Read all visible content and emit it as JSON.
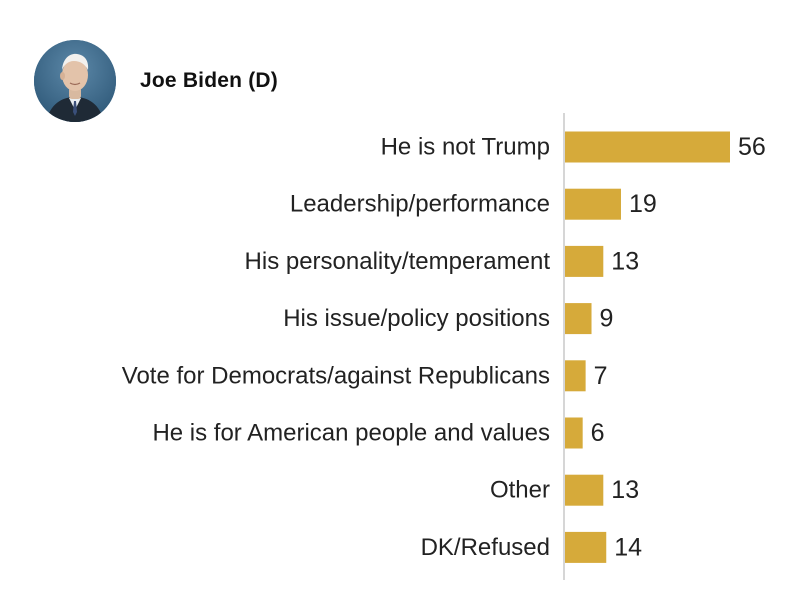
{
  "header": {
    "candidate_name": "Joe Biden (D)",
    "photo_icon": "person-portrait-icon"
  },
  "chart_data": {
    "type": "bar",
    "orientation": "horizontal",
    "categories": [
      "He is not Trump",
      "Leadership/performance",
      "His personality/temperament",
      "His issue/policy positions",
      "Vote for Democrats/against Republicans",
      "He is for American people and values",
      "Other",
      "DK/Refused"
    ],
    "values": [
      56,
      19,
      13,
      9,
      7,
      6,
      13,
      14
    ],
    "title": "",
    "xlabel": "",
    "ylabel": "",
    "xlim": [
      0,
      56
    ],
    "grid": false,
    "bar_color": "#d6aa3a",
    "axis_color": "#c9c9c9",
    "show_value_labels": true
  }
}
